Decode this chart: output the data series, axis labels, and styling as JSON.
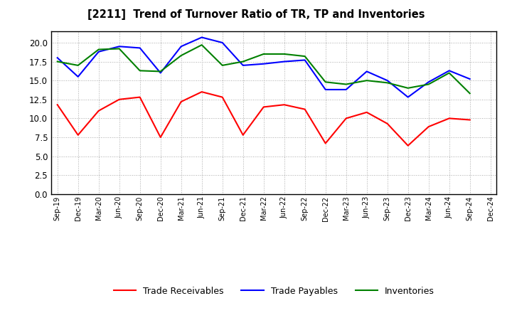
{
  "title": "[2211]  Trend of Turnover Ratio of TR, TP and Inventories",
  "labels": [
    "Sep-19",
    "Dec-19",
    "Mar-20",
    "Jun-20",
    "Sep-20",
    "Dec-20",
    "Mar-21",
    "Jun-21",
    "Sep-21",
    "Dec-21",
    "Mar-22",
    "Jun-22",
    "Sep-22",
    "Dec-22",
    "Mar-23",
    "Jun-23",
    "Sep-23",
    "Dec-23",
    "Mar-24",
    "Jun-24",
    "Sep-24",
    "Dec-24"
  ],
  "trade_receivables": [
    11.8,
    7.8,
    11.0,
    12.5,
    12.8,
    7.5,
    12.2,
    13.5,
    12.8,
    7.8,
    11.5,
    11.8,
    11.2,
    6.7,
    10.0,
    10.8,
    9.3,
    6.4,
    8.9,
    10.0,
    9.8,
    null
  ],
  "trade_payables": [
    18.0,
    15.5,
    18.8,
    19.5,
    19.3,
    16.0,
    19.5,
    20.7,
    20.0,
    17.0,
    17.2,
    17.5,
    17.7,
    13.8,
    13.8,
    16.2,
    15.0,
    12.8,
    14.8,
    16.3,
    15.2,
    null
  ],
  "inventories": [
    17.5,
    17.0,
    19.1,
    19.2,
    16.3,
    16.2,
    18.3,
    19.7,
    17.0,
    17.5,
    18.5,
    18.5,
    18.2,
    14.8,
    14.5,
    15.0,
    14.7,
    14.0,
    14.5,
    16.0,
    13.3,
    null
  ],
  "ylim": [
    0,
    21.5
  ],
  "yticks": [
    0.0,
    2.5,
    5.0,
    7.5,
    10.0,
    12.5,
    15.0,
    17.5,
    20.0
  ],
  "color_tr": "#FF0000",
  "color_tp": "#0000FF",
  "color_inv": "#008000",
  "legend_tr": "Trade Receivables",
  "legend_tp": "Trade Payables",
  "legend_inv": "Inventories",
  "bg_color": "#FFFFFF",
  "plot_bg_color": "#FFFFFF",
  "grid_color": "#AAAAAA",
  "linewidth": 1.5
}
